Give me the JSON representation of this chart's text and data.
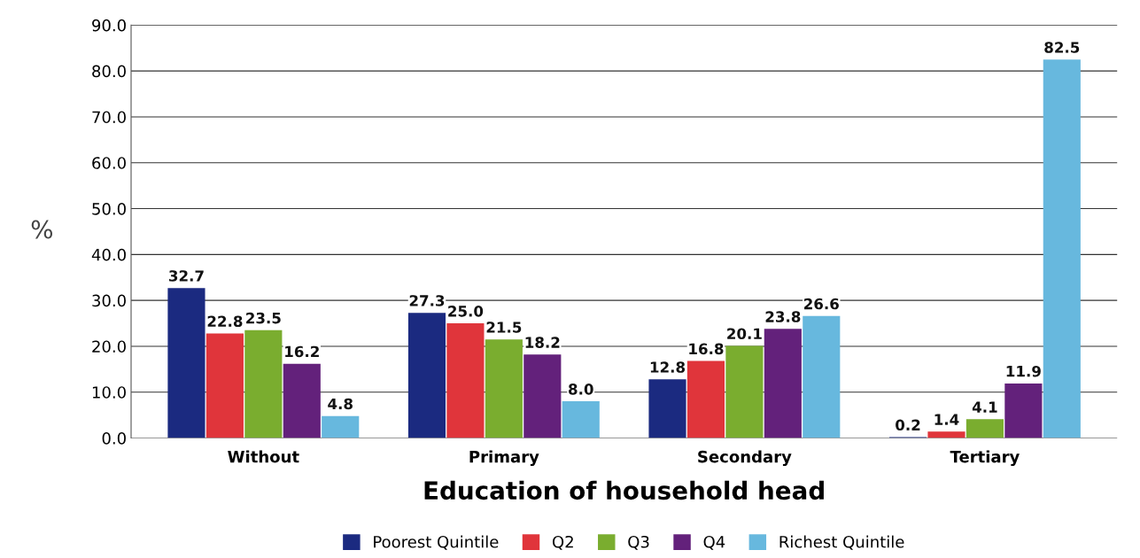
{
  "chart_data": {
    "type": "bar",
    "xlabel": "Education of household head",
    "ylabel": "%",
    "categories": [
      "Without",
      "Primary",
      "Secondary",
      "Tertiary"
    ],
    "series": [
      {
        "name": "Poorest Quintile",
        "color": "#1b2a80",
        "values": [
          32.7,
          27.3,
          12.8,
          0.2
        ],
        "value_labels": [
          "32.7",
          "27.3",
          "12.8",
          "0.2"
        ]
      },
      {
        "name": "Q2",
        "color": "#e0353b",
        "values": [
          22.8,
          25.0,
          16.8,
          1.4
        ],
        "value_labels": [
          "22.8",
          "25.0",
          "16.8",
          "1.4"
        ]
      },
      {
        "name": "Q3",
        "color": "#7aad2f",
        "values": [
          23.5,
          21.5,
          20.1,
          4.1
        ],
        "value_labels": [
          "23.5",
          "21.5",
          "20.1",
          "4.1"
        ]
      },
      {
        "name": "Q4",
        "color": "#63217b",
        "values": [
          16.2,
          18.2,
          23.8,
          11.9
        ],
        "value_labels": [
          "16.2",
          "18.2",
          "23.8",
          "11.9"
        ]
      },
      {
        "name": "Richest Quintile",
        "color": "#67b8de",
        "values": [
          4.8,
          8.0,
          26.6,
          82.5
        ],
        "value_labels": [
          "4.8",
          "8.0",
          "26.6",
          "82.5"
        ]
      }
    ],
    "ylim": [
      0,
      90
    ],
    "yticks": [
      {
        "value": 0,
        "label": "0.0"
      },
      {
        "value": 10,
        "label": "10.0"
      },
      {
        "value": 20,
        "label": "20.0"
      },
      {
        "value": 30,
        "label": "30.0"
      },
      {
        "value": 40,
        "label": "40.0"
      },
      {
        "value": 50,
        "label": "50.0"
      },
      {
        "value": 60,
        "label": "60.0"
      },
      {
        "value": 70,
        "label": "70.0"
      },
      {
        "value": 80,
        "label": "80.0"
      },
      {
        "value": 90,
        "label": "90.0"
      }
    ],
    "grid": "y",
    "legend": "bottom"
  }
}
